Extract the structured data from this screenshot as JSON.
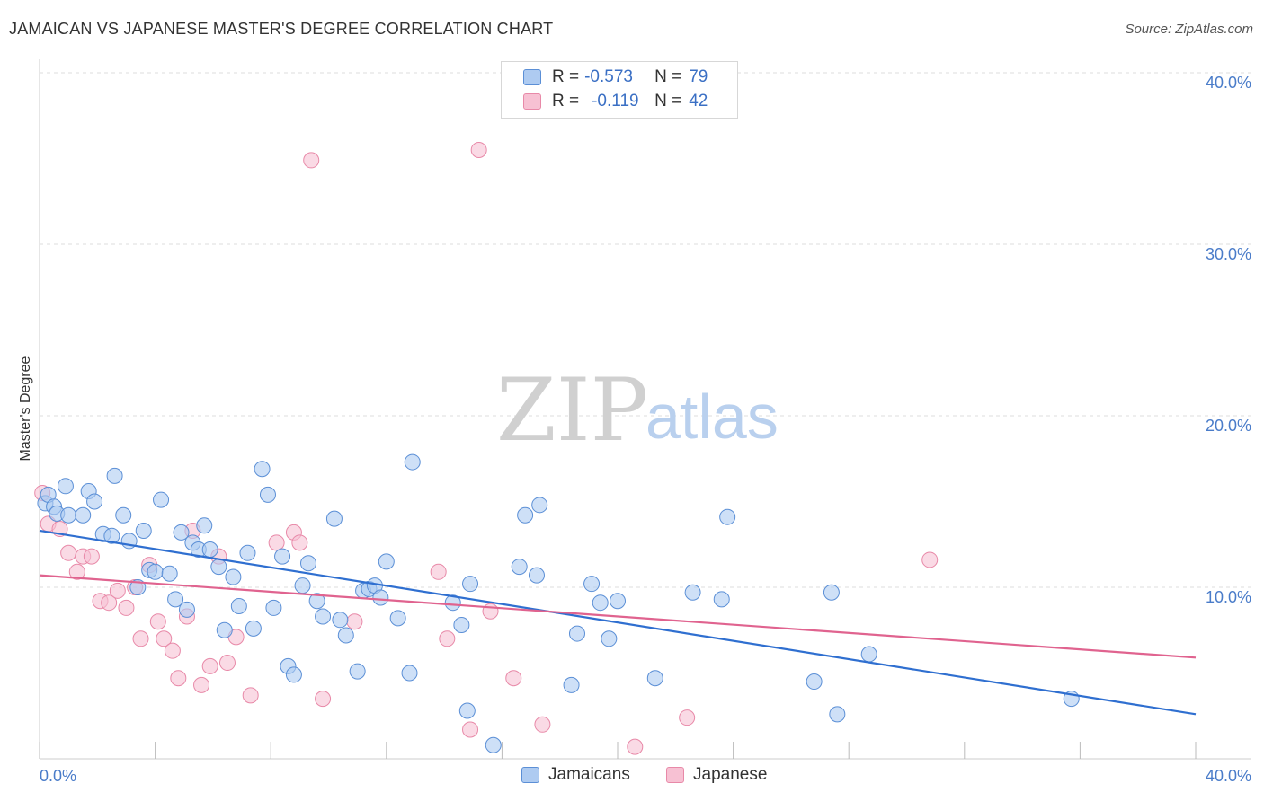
{
  "title": "JAMAICAN VS JAPANESE MASTER'S DEGREE CORRELATION CHART",
  "source": "Source: ZipAtlas.com",
  "watermark": {
    "zip": "ZIP",
    "atlas": "atlas"
  },
  "colors": {
    "jamaicans_fill": "#aecbf1",
    "jamaicans_stroke": "#5b8fd6",
    "jamaicans_line": "#2f6fd0",
    "japanese_fill": "#f7c1d3",
    "japanese_stroke": "#e889a8",
    "japanese_line": "#e0638f",
    "tick_text": "#4a7cc9",
    "grid": "#dddddd"
  },
  "legend": {
    "rows": [
      {
        "r_label": "R =",
        "r_value": "-0.573",
        "n_label": "N =",
        "n_value": "79"
      },
      {
        "r_label": "R =",
        "r_value": "-0.119",
        "n_label": "N =",
        "n_value": "42"
      }
    ],
    "series_names": [
      "Jamaicans",
      "Japanese"
    ]
  },
  "chart_data": {
    "type": "scatter",
    "title": "JAMAICAN VS JAPANESE MASTER'S DEGREE CORRELATION CHART",
    "ylabel": "Master's Degree",
    "xlabel": "",
    "xlim": [
      0,
      40
    ],
    "ylim": [
      0,
      40
    ],
    "x_tick_labels": [
      "0.0%",
      "40.0%"
    ],
    "y_ticks": [
      {
        "value": 10,
        "label": "10.0%"
      },
      {
        "value": 20,
        "label": "20.0%"
      },
      {
        "value": 30,
        "label": "30.0%"
      },
      {
        "value": 40,
        "label": "40.0%"
      }
    ],
    "grid": true,
    "legend_position": "top-center",
    "series": [
      {
        "name": "Jamaicans",
        "r": -0.573,
        "n": 79,
        "trend": {
          "x": [
            0,
            40
          ],
          "y": [
            13.3,
            2.6
          ]
        },
        "points": [
          [
            0.2,
            14.9
          ],
          [
            0.3,
            15.4
          ],
          [
            0.5,
            14.7
          ],
          [
            0.6,
            14.3
          ],
          [
            0.9,
            15.9
          ],
          [
            1.0,
            14.2
          ],
          [
            1.5,
            14.2
          ],
          [
            1.7,
            15.6
          ],
          [
            1.9,
            15.0
          ],
          [
            2.2,
            13.1
          ],
          [
            2.5,
            13.0
          ],
          [
            2.6,
            16.5
          ],
          [
            2.9,
            14.2
          ],
          [
            3.1,
            12.7
          ],
          [
            3.4,
            10.0
          ],
          [
            3.6,
            13.3
          ],
          [
            3.8,
            11.0
          ],
          [
            4.0,
            10.9
          ],
          [
            4.2,
            15.1
          ],
          [
            4.5,
            10.8
          ],
          [
            4.7,
            9.3
          ],
          [
            4.9,
            13.2
          ],
          [
            5.1,
            8.7
          ],
          [
            5.3,
            12.6
          ],
          [
            5.5,
            12.2
          ],
          [
            5.7,
            13.6
          ],
          [
            5.9,
            12.2
          ],
          [
            6.2,
            11.2
          ],
          [
            6.4,
            7.5
          ],
          [
            6.7,
            10.6
          ],
          [
            6.9,
            8.9
          ],
          [
            7.2,
            12.0
          ],
          [
            7.4,
            7.6
          ],
          [
            7.7,
            16.9
          ],
          [
            7.9,
            15.4
          ],
          [
            8.1,
            8.8
          ],
          [
            8.4,
            11.8
          ],
          [
            8.6,
            5.4
          ],
          [
            8.8,
            4.9
          ],
          [
            9.1,
            10.1
          ],
          [
            9.3,
            11.4
          ],
          [
            9.6,
            9.2
          ],
          [
            9.8,
            8.3
          ],
          [
            10.2,
            14.0
          ],
          [
            10.4,
            8.1
          ],
          [
            10.6,
            7.2
          ],
          [
            11.0,
            5.1
          ],
          [
            11.2,
            9.8
          ],
          [
            11.4,
            9.9
          ],
          [
            11.6,
            10.1
          ],
          [
            11.8,
            9.4
          ],
          [
            12.0,
            11.5
          ],
          [
            12.4,
            8.2
          ],
          [
            12.8,
            5.0
          ],
          [
            12.9,
            17.3
          ],
          [
            14.3,
            9.1
          ],
          [
            14.6,
            7.8
          ],
          [
            14.8,
            2.8
          ],
          [
            14.9,
            10.2
          ],
          [
            15.7,
            0.8
          ],
          [
            16.6,
            11.2
          ],
          [
            16.8,
            14.2
          ],
          [
            17.3,
            14.8
          ],
          [
            17.2,
            10.7
          ],
          [
            18.4,
            4.3
          ],
          [
            18.6,
            7.3
          ],
          [
            19.1,
            10.2
          ],
          [
            19.4,
            9.1
          ],
          [
            19.7,
            7.0
          ],
          [
            20.0,
            9.2
          ],
          [
            21.3,
            4.7
          ],
          [
            22.6,
            9.7
          ],
          [
            23.6,
            9.3
          ],
          [
            23.8,
            14.1
          ],
          [
            26.8,
            4.5
          ],
          [
            27.4,
            9.7
          ],
          [
            27.6,
            2.6
          ],
          [
            28.7,
            6.1
          ],
          [
            35.7,
            3.5
          ]
        ]
      },
      {
        "name": "Japanese",
        "r": -0.119,
        "n": 42,
        "trend": {
          "x": [
            0,
            40
          ],
          "y": [
            10.7,
            5.9
          ]
        },
        "points": [
          [
            0.1,
            15.5
          ],
          [
            0.3,
            13.7
          ],
          [
            0.7,
            13.4
          ],
          [
            1.0,
            12.0
          ],
          [
            1.3,
            10.9
          ],
          [
            1.5,
            11.8
          ],
          [
            1.8,
            11.8
          ],
          [
            2.1,
            9.2
          ],
          [
            2.4,
            9.1
          ],
          [
            2.7,
            9.8
          ],
          [
            3.0,
            8.8
          ],
          [
            3.3,
            10.0
          ],
          [
            3.5,
            7.0
          ],
          [
            3.8,
            11.3
          ],
          [
            4.1,
            8.0
          ],
          [
            4.3,
            7.0
          ],
          [
            4.6,
            6.3
          ],
          [
            4.8,
            4.7
          ],
          [
            5.1,
            8.3
          ],
          [
            5.3,
            13.3
          ],
          [
            5.6,
            4.3
          ],
          [
            5.9,
            5.4
          ],
          [
            6.2,
            11.8
          ],
          [
            6.5,
            5.6
          ],
          [
            6.8,
            7.1
          ],
          [
            7.3,
            3.7
          ],
          [
            8.2,
            12.6
          ],
          [
            8.8,
            13.2
          ],
          [
            9.0,
            12.6
          ],
          [
            9.4,
            34.9
          ],
          [
            9.8,
            3.5
          ],
          [
            10.9,
            8.0
          ],
          [
            13.8,
            10.9
          ],
          [
            14.1,
            7.0
          ],
          [
            14.9,
            1.7
          ],
          [
            15.2,
            35.5
          ],
          [
            15.6,
            8.6
          ],
          [
            16.4,
            4.7
          ],
          [
            17.4,
            2.0
          ],
          [
            20.6,
            0.7
          ],
          [
            22.4,
            2.4
          ],
          [
            30.8,
            11.6
          ]
        ]
      }
    ]
  }
}
